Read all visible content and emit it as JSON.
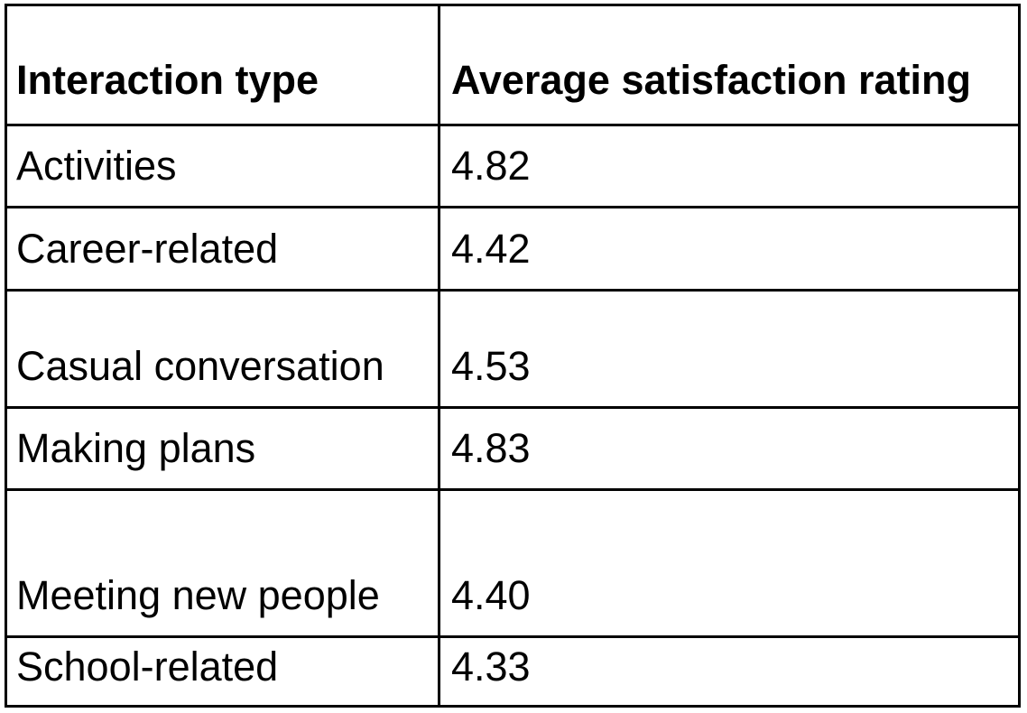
{
  "table": {
    "headers": [
      "Interaction type",
      "Average satisfaction rating"
    ],
    "rows": [
      {
        "type": "Activities",
        "rating": "4.82"
      },
      {
        "type": "Career-related",
        "rating": "4.42"
      },
      {
        "type": "Casual conversation",
        "rating": "4.53"
      },
      {
        "type": "Making plans",
        "rating": "4.83"
      },
      {
        "type": "Meeting new people",
        "rating": "4.40"
      },
      {
        "type": "School-related",
        "rating": "4.33"
      }
    ]
  }
}
